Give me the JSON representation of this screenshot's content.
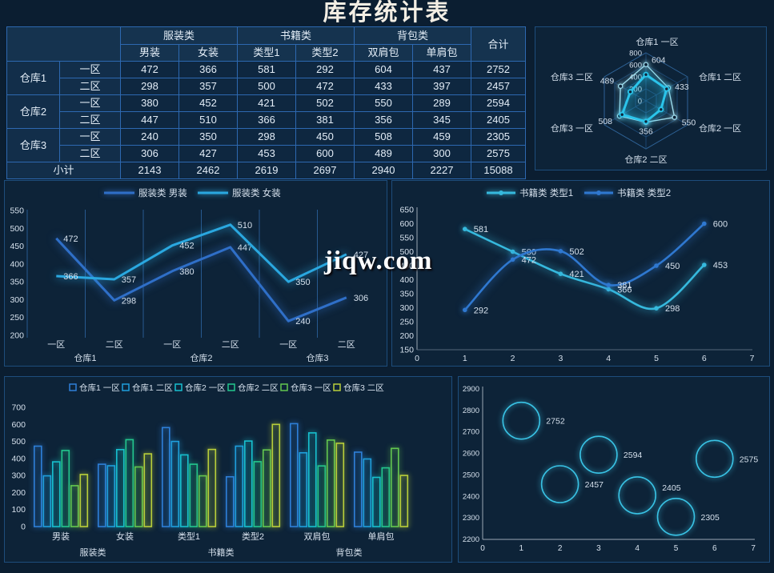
{
  "page": {
    "title": "库存统计表",
    "watermark": "jiqw.com"
  },
  "table": {
    "corner": "",
    "groups": [
      {
        "label": "服装类",
        "subs": [
          "男装",
          "女装"
        ]
      },
      {
        "label": "书籍类",
        "subs": [
          "类型1",
          "类型2"
        ]
      },
      {
        "label": "背包类",
        "subs": [
          "双肩包",
          "单肩包"
        ]
      }
    ],
    "total_label": "合计",
    "rows": [
      {
        "warehouse": "仓库1",
        "zone": "一区",
        "values": [
          "472",
          "366",
          "581",
          "292",
          "604",
          "437"
        ],
        "total": "2752"
      },
      {
        "warehouse": "仓库1",
        "zone": "二区",
        "values": [
          "298",
          "357",
          "500",
          "472",
          "433",
          "397"
        ],
        "total": "2457"
      },
      {
        "warehouse": "仓库2",
        "zone": "一区",
        "values": [
          "380",
          "452",
          "421",
          "502",
          "550",
          "289"
        ],
        "total": "2594"
      },
      {
        "warehouse": "仓库2",
        "zone": "二区",
        "values": [
          "447",
          "510",
          "366",
          "381",
          "356",
          "345"
        ],
        "total": "2405"
      },
      {
        "warehouse": "仓库3",
        "zone": "一区",
        "values": [
          "240",
          "350",
          "298",
          "450",
          "508",
          "459"
        ],
        "total": "2305"
      },
      {
        "warehouse": "仓库3",
        "zone": "二区",
        "values": [
          "306",
          "427",
          "453",
          "600",
          "489",
          "300"
        ],
        "total": "2575"
      }
    ],
    "subtotal": {
      "label": "小计",
      "values": [
        "2143",
        "2462",
        "2619",
        "2697",
        "2940",
        "2227"
      ],
      "total": "15088"
    }
  },
  "chart_data": [
    {
      "id": "radar",
      "type": "radar",
      "indicators": [
        "仓库1 一区",
        "仓库1 二区",
        "仓库2 一区",
        "仓库2 二区",
        "仓库3 一区",
        "仓库3 二区"
      ],
      "max": 800,
      "ticks": [
        0,
        200,
        400,
        600,
        800
      ],
      "series": [
        {
          "name": "双肩包",
          "values": [
            604,
            433,
            550,
            356,
            508,
            489
          ],
          "color": "#9fdcec",
          "width": 1.4,
          "labeled": true
        },
        {
          "name": "单肩包",
          "values": [
            437,
            397,
            289,
            345,
            459,
            300
          ],
          "color": "#2bc4ea",
          "width": 3,
          "labeled": false
        }
      ]
    },
    {
      "id": "clothing-line",
      "type": "line",
      "legend": [
        "服装类 男装",
        "服装类 女装"
      ],
      "categories": [
        "一区",
        "二区",
        "一区",
        "二区",
        "一区",
        "二区"
      ],
      "groups": [
        "仓库1",
        "仓库2",
        "仓库3"
      ],
      "ylim": [
        200,
        550
      ],
      "ystep": 50,
      "series": [
        {
          "name": "服装类 男装",
          "color": "#2f6fc8",
          "values": [
            472,
            298,
            380,
            447,
            240,
            306
          ]
        },
        {
          "name": "服装类 女装",
          "color": "#2aa8e0",
          "values": [
            366,
            357,
            452,
            510,
            350,
            427
          ]
        }
      ]
    },
    {
      "id": "books-line",
      "type": "line-smooth",
      "legend": [
        "书籍类 类型1",
        "书籍类 类型2"
      ],
      "x": [
        1,
        2,
        3,
        4,
        5,
        6
      ],
      "xlim": [
        0,
        7
      ],
      "ylim": [
        150,
        650
      ],
      "ystep": 50,
      "series": [
        {
          "name": "书籍类 类型1",
          "color": "#36b9dd",
          "values": [
            581,
            500,
            421,
            366,
            298,
            453
          ]
        },
        {
          "name": "书籍类 类型2",
          "color": "#2f78d0",
          "values": [
            292,
            472,
            502,
            381,
            450,
            600
          ]
        }
      ]
    },
    {
      "id": "warehouse-bars",
      "type": "bar",
      "categories": [
        "男装",
        "女装",
        "类型1",
        "类型2",
        "双肩包",
        "单肩包"
      ],
      "category_groups": [
        "服装类",
        "书籍类",
        "背包类"
      ],
      "ylim": [
        0,
        700
      ],
      "ystep": 100,
      "series": [
        {
          "name": "仓库1 一区",
          "color": "#2e7fd8",
          "values": [
            472,
            366,
            581,
            292,
            604,
            437
          ]
        },
        {
          "name": "仓库1 二区",
          "color": "#1f9fdd",
          "values": [
            298,
            357,
            500,
            472,
            433,
            397
          ]
        },
        {
          "name": "仓库2 一区",
          "color": "#17c0cf",
          "values": [
            380,
            452,
            421,
            502,
            550,
            289
          ]
        },
        {
          "name": "仓库2 二区",
          "color": "#23c78e",
          "values": [
            447,
            510,
            366,
            381,
            356,
            345
          ]
        },
        {
          "name": "仓库3 一区",
          "color": "#63c74f",
          "values": [
            240,
            350,
            298,
            450,
            508,
            459
          ]
        },
        {
          "name": "仓库3 二区",
          "color": "#b9cf3a",
          "values": [
            306,
            427,
            453,
            600,
            489,
            300
          ]
        }
      ]
    },
    {
      "id": "total-bubbles",
      "type": "scatter",
      "x": [
        1,
        2,
        3,
        4,
        5,
        6
      ],
      "y": [
        2752,
        2457,
        2594,
        2405,
        2305,
        2575
      ],
      "labels": [
        "2752",
        "2457",
        "2594",
        "2405",
        "2305",
        "2575"
      ],
      "xlim": [
        0,
        7
      ],
      "ylim": [
        2200,
        2900
      ],
      "ystep": 100,
      "color": "#39c2e4"
    }
  ],
  "colors": {
    "background": "#0b1e31",
    "panel": "#0d2338",
    "panel_border": "#1d4d7c",
    "table_border": "#2d68b0",
    "text": "#dde8f2",
    "axis": "#9aa7b5"
  }
}
